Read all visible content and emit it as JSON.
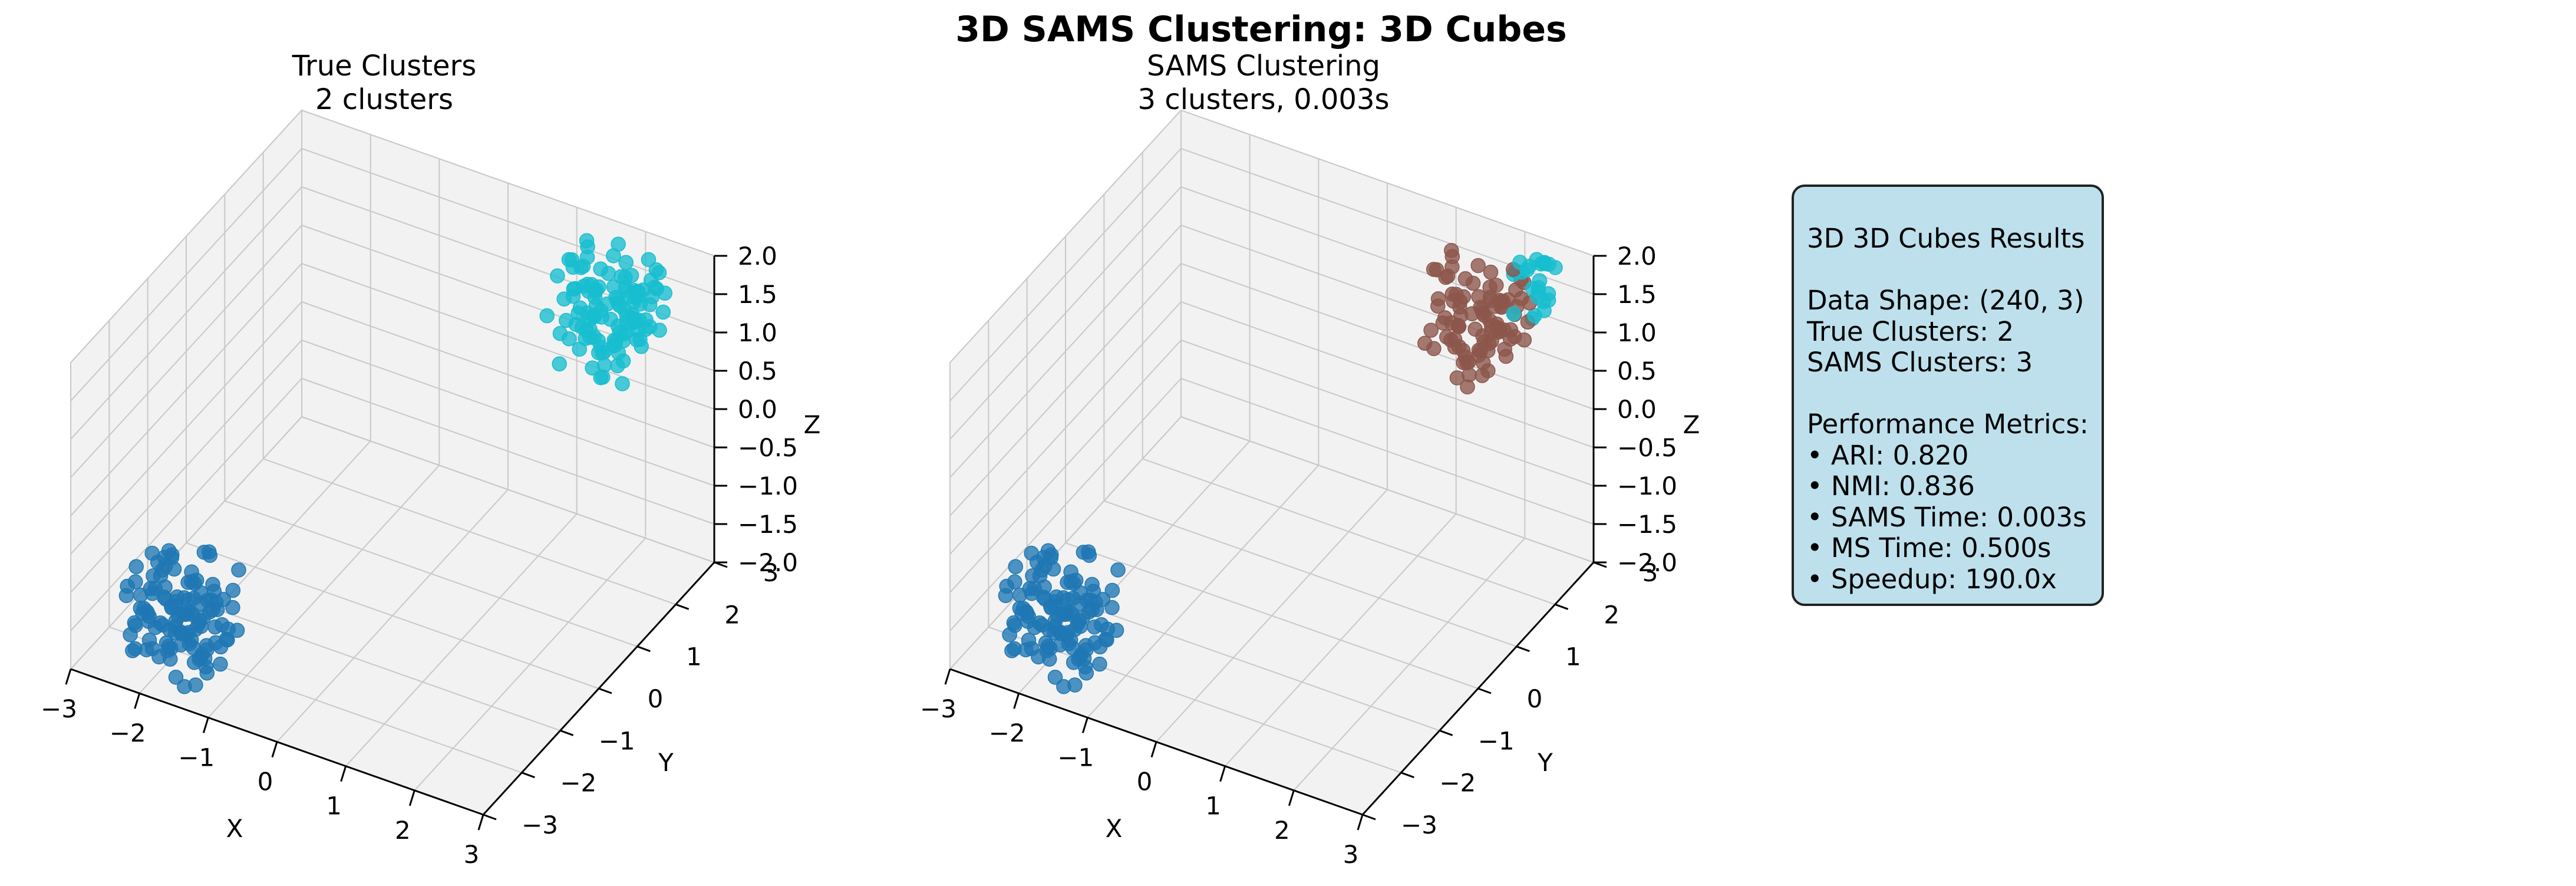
{
  "figure": {
    "suptitle": "3D SAMS Clustering: 3D Cubes"
  },
  "colors": {
    "cluster_blue": "#1f77b4",
    "cluster_cyan": "#17becf",
    "cluster_brown": "#8c564b",
    "pane": "#f2f2f2",
    "grid": "#c8c8c8",
    "stats_box_bg": "#bde0ec",
    "stats_box_edge": "#222222"
  },
  "stats_box": {
    "title": "3D 3D Cubes Results",
    "lines": [
      "Data Shape: (240, 3)",
      "True Clusters: 2",
      "SAMS Clusters: 3"
    ],
    "metrics_header": "Performance Metrics:",
    "metrics": [
      "• ARI: 0.820",
      "• NMI: 0.836",
      "• SAMS Time: 0.003s",
      "• MS Time: 0.500s",
      "• Speedup: 190.0x"
    ]
  },
  "chart_data": [
    {
      "type": "scatter",
      "projection": "3d",
      "title": "True Clusters",
      "subtitle": "2 clusters",
      "xlabel": "X",
      "ylabel": "Y",
      "zlabel": "Z",
      "xlim": [
        -3,
        3
      ],
      "ylim": [
        -3,
        3
      ],
      "zlim": [
        -2,
        2
      ],
      "xticks": [
        "−3",
        "−2",
        "−1",
        "0",
        "1",
        "2",
        "3"
      ],
      "yticks": [
        "−3",
        "−2",
        "−1",
        "0",
        "1",
        "2",
        "3"
      ],
      "zticks": [
        "−2.0",
        "−1.5",
        "−1.0",
        "−0.5",
        "0.0",
        "0.5",
        "1.0",
        "1.5",
        "2.0"
      ],
      "grid": true,
      "series": [
        {
          "color": "cluster_blue",
          "count": 120,
          "center": [
            -2,
            -2,
            -1.5
          ],
          "spread": [
            0.6,
            0.6,
            0.6
          ]
        },
        {
          "color": "cluster_cyan",
          "count": 120,
          "center": [
            2,
            2,
            1.5
          ],
          "spread": [
            0.6,
            0.6,
            0.6
          ]
        }
      ]
    },
    {
      "type": "scatter",
      "projection": "3d",
      "title": "SAMS Clustering",
      "subtitle": "3 clusters, 0.003s",
      "xlabel": "X",
      "ylabel": "Y",
      "zlabel": "Z",
      "xlim": [
        -3,
        3
      ],
      "ylim": [
        -3,
        3
      ],
      "zlim": [
        -2,
        2
      ],
      "xticks": [
        "−3",
        "−2",
        "−1",
        "0",
        "1",
        "2",
        "3"
      ],
      "yticks": [
        "−3",
        "−2",
        "−1",
        "0",
        "1",
        "2",
        "3"
      ],
      "zticks": [
        "−2.0",
        "−1.5",
        "−1.0",
        "−0.5",
        "0.0",
        "0.5",
        "1.0",
        "1.5",
        "2.0"
      ],
      "grid": true,
      "series": [
        {
          "color": "cluster_blue",
          "count": 120,
          "center": [
            -2,
            -2,
            -1.5
          ],
          "spread": [
            0.6,
            0.6,
            0.6
          ]
        },
        {
          "color": "cluster_brown",
          "count": 95,
          "center": [
            1.9,
            1.8,
            1.45
          ],
          "spread": [
            0.6,
            0.6,
            0.6
          ]
        },
        {
          "color": "cluster_cyan",
          "count": 25,
          "center": [
            2.45,
            2.45,
            1.7
          ],
          "spread": [
            0.25,
            0.25,
            0.3
          ]
        }
      ]
    }
  ]
}
